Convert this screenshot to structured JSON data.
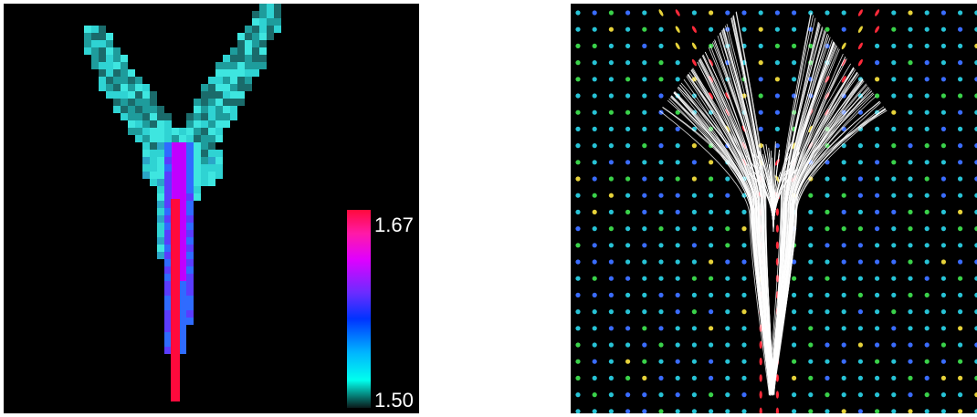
{
  "left_panel": {
    "colorbar": {
      "max_label": "1.67",
      "min_label": "1.50",
      "colors": [
        "#ff0a3c",
        "#ff00ff",
        "#6a2cff",
        "#0040ff",
        "#00b4ff",
        "#00ffee",
        "#0a1a1a"
      ]
    },
    "colors": {
      "background": "#000000",
      "cyan": "#2fd3d3",
      "blue": "#2f6bff",
      "magenta": "#c000ff",
      "red": "#ff0a3c"
    }
  },
  "right_panel": {
    "colors": {
      "background": "#000000",
      "glyph_cyan": "#27c3d6",
      "glyph_green": "#3ad24a",
      "glyph_blue": "#3a6cff",
      "glyph_yellow": "#e6d23a",
      "glyph_red": "#ff2a3a",
      "fibers": "#ffffff"
    }
  }
}
